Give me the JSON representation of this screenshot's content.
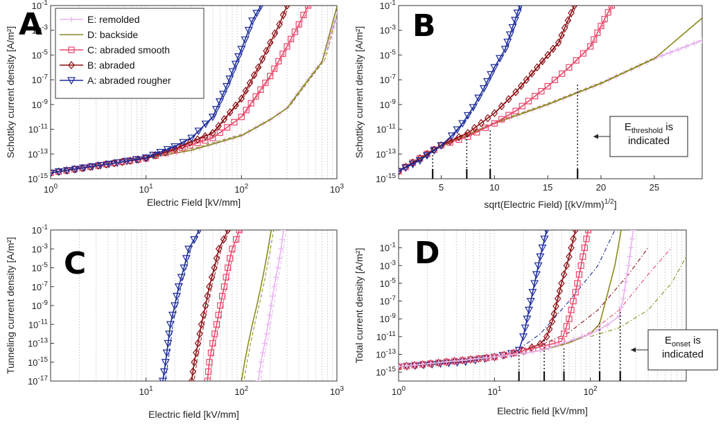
{
  "colors": {
    "E": "#e8b4f0",
    "D": "#8a8a1c",
    "C": "#e8476a",
    "B": "#8b0f14",
    "A": "#1a2a9a"
  },
  "chart_data": [
    {
      "type": "line",
      "panel_letter": "A",
      "x_scale": "log",
      "y_scale": "log",
      "xlabel": "Electric Field [kV/mm]",
      "ylabel": "Schottky current density [A/m²]",
      "xlim": [
        1,
        1000
      ],
      "ylim": [
        1e-15,
        0.1
      ],
      "x_ticks": [
        1,
        10,
        100,
        1000
      ],
      "x_tick_labels": [
        {
          "base": "10",
          "exp": "0"
        },
        {
          "base": "10",
          "exp": "1"
        },
        {
          "base": "10",
          "exp": "2"
        },
        {
          "base": "10",
          "exp": "3"
        }
      ],
      "y_ticks": [
        1e-15,
        1e-13,
        1e-11,
        1e-09,
        1e-07,
        1e-05,
        0.001,
        0.1
      ],
      "y_tick_labels": [
        {
          "base": "10",
          "exp": "-15"
        },
        {
          "base": "10",
          "exp": "-13"
        },
        {
          "base": "10",
          "exp": "-11"
        },
        {
          "base": "10",
          "exp": "-9"
        },
        {
          "base": "10",
          "exp": "-7"
        },
        {
          "base": "10",
          "exp": "-5"
        },
        {
          "base": "10",
          "exp": "-3"
        },
        {
          "base": "10",
          "exp": "-1"
        }
      ],
      "grid": "x-minor",
      "legend": "top-left",
      "series": [
        {
          "key": "E",
          "name": "E: remolded",
          "marker": "plus",
          "x": [
            1,
            10,
            30,
            100,
            200,
            300,
            500,
            700,
            1000
          ],
          "y": [
            3e-15,
            4.5e-14,
            2e-13,
            3e-12,
            6e-11,
            5e-10,
            1e-07,
            3e-06,
            0.02
          ]
        },
        {
          "key": "D",
          "name": "D: backside",
          "marker": "none",
          "x": [
            1,
            10,
            30,
            100,
            200,
            300,
            500,
            700,
            1000
          ],
          "y": [
            3e-15,
            4.5e-14,
            2e-13,
            3e-12,
            6e-11,
            5e-10,
            1e-07,
            3e-06,
            0.08
          ]
        },
        {
          "key": "C",
          "name": "C: abraded smooth",
          "marker": "square",
          "x": [
            1,
            10,
            20,
            50,
            100,
            200,
            300,
            400,
            500
          ],
          "y": [
            3e-15,
            4.5e-14,
            2e-13,
            2e-12,
            1e-10,
            2e-07,
            5e-05,
            0.003,
            0.1
          ]
        },
        {
          "key": "B",
          "name": "B: abraded",
          "marker": "diamond",
          "x": [
            1,
            10,
            20,
            50,
            100,
            150,
            200,
            250,
            300
          ],
          "y": [
            3e-15,
            4.5e-14,
            2.5e-13,
            5e-12,
            3e-09,
            1e-06,
            0.0001,
            0.003,
            0.1
          ]
        },
        {
          "key": "A",
          "name": "A: abraded rougher",
          "marker": "triangle",
          "x": [
            1,
            5,
            10,
            20,
            30,
            50,
            70,
            100,
            130,
            160
          ],
          "y": [
            3e-15,
            2e-14,
            5e-14,
            4e-13,
            2e-12,
            1e-10,
            3e-08,
            3e-05,
            0.006,
            0.1
          ]
        }
      ]
    },
    {
      "type": "line",
      "panel_letter": "B",
      "x_scale": "linear",
      "y_scale": "log",
      "xlabel": "sqrt(Electric Field) [(kV/mm)^{1/2}]",
      "xlabel_parts": {
        "main": "sqrt(Electric Field) [(kV/mm)",
        "exp": "1/2",
        "tail": "]"
      },
      "ylabel": "Schottky current density [A/m²]",
      "xlim": [
        1,
        29.5
      ],
      "ylim": [
        1e-15,
        0.1
      ],
      "x_ticks": [
        5,
        10,
        15,
        20,
        25
      ],
      "x_tick_labels": [
        "5",
        "10",
        "15",
        "20",
        "25"
      ],
      "y_ticks": [
        1e-15,
        1e-13,
        1e-11,
        1e-09,
        1e-07,
        1e-05,
        0.001,
        0.1
      ],
      "y_tick_labels": [
        {
          "base": "10",
          "exp": "-15"
        },
        {
          "base": "10",
          "exp": "-13"
        },
        {
          "base": "10",
          "exp": "-11"
        },
        {
          "base": "10",
          "exp": "-9"
        },
        {
          "base": "10",
          "exp": "-7"
        },
        {
          "base": "10",
          "exp": "-5"
        },
        {
          "base": "10",
          "exp": "-3"
        },
        {
          "base": "10",
          "exp": "-1"
        }
      ],
      "grid": "off",
      "thresholds_x": [
        4.2,
        7.4,
        9.6,
        17.8
      ],
      "thresholds_y": [
        3e-13,
        3e-12,
        8e-12,
        4e-08
      ],
      "annotation": {
        "main": "E",
        "sub": "threshold",
        "line1_tail": " is",
        "line2": "indicated"
      },
      "series": [
        {
          "key": "E",
          "marker": "plus",
          "x": [
            1,
            5,
            10,
            15,
            20,
            25,
            29.5
          ],
          "y": [
            4e-15,
            4e-13,
            3e-11,
            1e-09,
            5e-08,
            5e-06,
            0.00015
          ]
        },
        {
          "key": "D",
          "marker": "none",
          "x": [
            1,
            5,
            10,
            15,
            20,
            25,
            29.5
          ],
          "y": [
            4e-15,
            4e-13,
            3e-11,
            1e-09,
            5e-08,
            5e-06,
            0.01
          ]
        },
        {
          "key": "C",
          "marker": "square",
          "x": [
            1,
            5,
            7.5,
            10,
            12,
            15,
            17,
            19,
            21
          ],
          "y": [
            4e-15,
            5e-13,
            2.5e-12,
            3e-11,
            3e-10,
            3e-08,
            1e-06,
            5e-05,
            0.1
          ]
        },
        {
          "key": "B",
          "marker": "diamond",
          "x": [
            1,
            5,
            7.5,
            10,
            12,
            14,
            16,
            17.5
          ],
          "y": [
            4e-15,
            5e-13,
            5e-12,
            2e-10,
            1e-08,
            1e-06,
            0.0001,
            0.1
          ]
        },
        {
          "key": "A",
          "marker": "triangle",
          "x": [
            1,
            3,
            5,
            6,
            7,
            8,
            9,
            10,
            11,
            12.4
          ],
          "y": [
            4e-15,
            3e-14,
            5e-13,
            3e-12,
            3e-11,
            6e-10,
            2e-08,
            1e-06,
            3e-05,
            0.1
          ]
        }
      ]
    },
    {
      "type": "line",
      "panel_letter": "C",
      "x_scale": "log",
      "y_scale": "log",
      "xlabel": "Electric field [kV/mm]",
      "ylabel": "Tunneling current density [A/m²]",
      "xlim": [
        1,
        1000
      ],
      "ylim": [
        1e-17,
        0.1
      ],
      "x_ticks": [
        10,
        100,
        1000
      ],
      "x_tick_labels": [
        {
          "base": "10",
          "exp": "1"
        },
        {
          "base": "10",
          "exp": "2"
        },
        {
          "base": "10",
          "exp": "3"
        }
      ],
      "y_ticks": [
        1e-17,
        1e-15,
        1e-13,
        1e-11,
        1e-09,
        1e-07,
        1e-05,
        0.001,
        0.1
      ],
      "y_tick_labels": [
        {
          "base": "10",
          "exp": "-17"
        },
        {
          "base": "10",
          "exp": "-15"
        },
        {
          "base": "10",
          "exp": "-13"
        },
        {
          "base": "10",
          "exp": "-11"
        },
        {
          "base": "10",
          "exp": "-9"
        },
        {
          "base": "10",
          "exp": "-7"
        },
        {
          "base": "10",
          "exp": "-5"
        },
        {
          "base": "10",
          "exp": "-3"
        },
        {
          "base": "10",
          "exp": "-1"
        }
      ],
      "grid": "x-minor",
      "series": [
        {
          "key": "A",
          "marker": "triangle",
          "x": [
            15,
            16,
            17,
            18,
            20,
            22,
            25,
            28,
            32,
            36
          ],
          "y": [
            1e-17,
            1e-15,
            1e-13,
            1e-11,
            1e-09,
            1e-07,
            1e-05,
            0.001,
            0.01,
            0.1
          ]
        },
        {
          "key": "B",
          "marker": "diamond",
          "x": [
            30,
            32,
            35,
            38,
            42,
            46,
            52,
            58,
            65,
            72
          ],
          "y": [
            1e-17,
            1e-15,
            1e-13,
            1e-11,
            1e-09,
            1e-07,
            1e-05,
            0.001,
            0.01,
            0.1
          ]
        },
        {
          "key": "C",
          "marker": "square",
          "x": [
            44,
            46,
            50,
            55,
            60,
            66,
            72,
            80,
            88,
            95
          ],
          "y": [
            1e-17,
            1e-15,
            1e-13,
            1e-11,
            1e-09,
            1e-07,
            1e-05,
            0.001,
            0.01,
            0.1
          ]
        },
        {
          "key": "D",
          "marker": "none",
          "x": [
            100,
            108,
            118,
            130,
            145,
            160,
            175,
            190,
            205
          ],
          "y": [
            1e-17,
            1e-15,
            1e-13,
            1e-11,
            1e-09,
            1e-07,
            1e-05,
            0.001,
            0.1
          ]
        },
        {
          "key": "E",
          "marker": "plus",
          "x": [
            150,
            160,
            175,
            190,
            205,
            220,
            240,
            260,
            275
          ],
          "y": [
            1e-17,
            1e-15,
            1e-13,
            1e-11,
            1e-09,
            1e-07,
            1e-05,
            0.001,
            0.1
          ]
        }
      ]
    },
    {
      "type": "line",
      "panel_letter": "D",
      "x_scale": "log",
      "y_scale": "log",
      "xlabel": "Electric field [kV/mm]",
      "ylabel": "Total current density [A/m²]",
      "xlim": [
        1,
        1000
      ],
      "ylim": [
        1e-16,
        10.0
      ],
      "x_ticks": [
        1,
        10,
        100
      ],
      "x_tick_labels": [
        {
          "base": "10",
          "exp": "0"
        },
        {
          "base": "10",
          "exp": "1"
        },
        {
          "base": "10",
          "exp": "2"
        }
      ],
      "y_ticks": [
        1e-15,
        1e-13,
        1e-11,
        1e-09,
        1e-07,
        1e-05,
        0.001,
        0.1
      ],
      "y_tick_labels": [
        {
          "base": "10",
          "exp": "-15"
        },
        {
          "base": "10",
          "exp": "-13"
        },
        {
          "base": "10",
          "exp": "-11"
        },
        {
          "base": "10",
          "exp": "-9"
        },
        {
          "base": "10",
          "exp": "-7"
        },
        {
          "base": "10",
          "exp": "-5"
        },
        {
          "base": "10",
          "exp": "-3"
        },
        {
          "base": "10",
          "exp": "-1"
        }
      ],
      "grid": "x-minor",
      "onsets_x": [
        18,
        33,
        53,
        125,
        205
      ],
      "onsets_y": [
        2e-13,
        4e-12,
        5e-13,
        4e-10,
        6e-09
      ],
      "annotation": {
        "main": "E",
        "sub": "onset",
        "line1_tail": " is",
        "line2": "indicated"
      },
      "series": [
        {
          "key": "A",
          "marker": "triangle",
          "x": [
            1,
            5,
            10,
            15,
            18,
            20,
            25,
            30,
            35
          ],
          "y": [
            4e-15,
            1.5e-14,
            5e-14,
            1.3e-13,
            3e-13,
            1e-11,
            1e-06,
            0.01,
            10
          ]
        },
        {
          "key": "B",
          "marker": "diamond",
          "x": [
            1,
            10,
            20,
            30,
            35,
            40,
            50,
            60,
            70
          ],
          "y": [
            4e-15,
            5e-14,
            2.5e-13,
            1.5e-12,
            1e-11,
            5e-10,
            1e-05,
            0.01,
            10
          ]
        },
        {
          "key": "C",
          "marker": "square",
          "x": [
            1,
            10,
            20,
            40,
            50,
            60,
            70,
            80,
            95
          ],
          "y": [
            4e-15,
            5e-14,
            2.5e-13,
            1.5e-12,
            3e-12,
            1e-09,
            1e-06,
            0.001,
            10
          ]
        },
        {
          "key": "D",
          "marker": "none",
          "x": [
            1,
            10,
            30,
            60,
            100,
            125,
            150,
            180,
            210
          ],
          "y": [
            4e-15,
            5e-14,
            2.5e-13,
            2e-12,
            2e-11,
            3e-10,
            5e-07,
            0.001,
            10
          ]
        },
        {
          "key": "E",
          "marker": "plus",
          "x": [
            1,
            10,
            30,
            100,
            150,
            200,
            220,
            250,
            280
          ],
          "y": [
            4e-15,
            5e-14,
            2.5e-13,
            2e-11,
            2e-10,
            2e-09,
            2e-07,
            0.001,
            10
          ]
        }
      ],
      "dashed_schottky": [
        {
          "key": "A",
          "x": [
            15,
            30,
            60,
            120,
            180
          ],
          "y": [
            1e-13,
            2e-11,
            1e-07,
            0.001,
            10
          ]
        },
        {
          "key": "B",
          "x": [
            30,
            60,
            120,
            250,
            400
          ],
          "y": [
            1e-12,
            3e-11,
            1e-08,
            0.0001,
            0.1
          ]
        },
        {
          "key": "C",
          "x": [
            50,
            100,
            200,
            400,
            700
          ],
          "y": [
            1e-12,
            3e-11,
            1e-08,
            0.0001,
            0.1
          ]
        },
        {
          "key": "D",
          "x": [
            100,
            200,
            400,
            700,
            1000
          ],
          "y": [
            1e-11,
            1e-10,
            1e-08,
            1e-05,
            0.01
          ]
        }
      ]
    }
  ]
}
